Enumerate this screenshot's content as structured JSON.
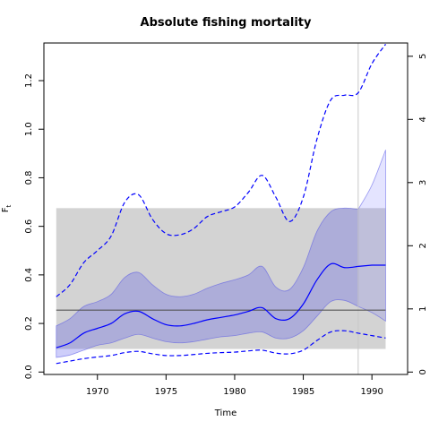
{
  "chart_data": {
    "type": "line",
    "title": "Absolute fishing mortality",
    "xlabel": "Time",
    "ylabel": "F",
    "ylabel_subscript": "t",
    "xlim": [
      1966.1,
      1992.6
    ],
    "ylim": [
      -0.01,
      1.355
    ],
    "ylim_right": [
      -0.038,
      5.21
    ],
    "x_ticks": [
      1970,
      1975,
      1980,
      1985,
      1990
    ],
    "y_ticks": [
      0.0,
      0.2,
      0.4,
      0.6,
      0.8,
      1.0,
      1.2
    ],
    "y_tick_labels": [
      "0.0",
      "0.2",
      "0.4",
      "0.6",
      "0.8",
      "1.0",
      "1.2"
    ],
    "y_right_ticks": [
      0,
      1,
      2,
      3,
      4,
      5
    ],
    "y_right_tick_labels": [
      "0",
      "1",
      "2",
      "3",
      "4",
      "5"
    ],
    "grey_band": {
      "x": [
        1967,
        1991
      ],
      "y": [
        0.095,
        0.675
      ]
    },
    "reference_line": {
      "y": 0.255,
      "x": [
        1967,
        1991
      ]
    },
    "vertical_line": {
      "x": 1989
    },
    "series": [
      {
        "style": "solid",
        "color": "#0000ff",
        "x": [
          1967,
          1968,
          1969,
          1970,
          1971,
          1972,
          1973,
          1974,
          1975,
          1976,
          1977,
          1978,
          1979,
          1980,
          1981,
          1982,
          1983,
          1984,
          1985,
          1986,
          1987,
          1988,
          1989
        ],
        "y": [
          0.1,
          0.12,
          0.16,
          0.18,
          0.2,
          0.24,
          0.25,
          0.22,
          0.195,
          0.19,
          0.2,
          0.215,
          0.225,
          0.235,
          0.25,
          0.265,
          0.22,
          0.22,
          0.28,
          0.38,
          0.445,
          0.43,
          0.435
        ]
      },
      {
        "style": "solid-extension",
        "color": "#0000ff",
        "x": [
          1989,
          1990,
          1991
        ],
        "y": [
          0.435,
          0.44,
          0.44
        ]
      },
      {
        "style": "dashed",
        "color": "#0000ff",
        "x": [
          1967,
          1968,
          1969,
          1970,
          1971,
          1972,
          1973,
          1974,
          1975,
          1976,
          1977,
          1978,
          1979,
          1980,
          1981,
          1982,
          1983,
          1984,
          1985,
          1986,
          1987,
          1988,
          1989,
          1990,
          1991
        ],
        "y": [
          0.31,
          0.36,
          0.45,
          0.5,
          0.56,
          0.7,
          0.73,
          0.63,
          0.57,
          0.565,
          0.59,
          0.64,
          0.66,
          0.68,
          0.74,
          0.81,
          0.72,
          0.62,
          0.72,
          0.96,
          1.12,
          1.14,
          1.15,
          1.27,
          1.35
        ]
      },
      {
        "style": "dashed",
        "color": "#0000ff",
        "x": [
          1967,
          1968,
          1969,
          1970,
          1971,
          1972,
          1973,
          1974,
          1975,
          1976,
          1977,
          1978,
          1979,
          1980,
          1981,
          1982,
          1983,
          1984,
          1985,
          1986,
          1987,
          1988,
          1989,
          1990,
          1991
        ],
        "y": [
          0.035,
          0.045,
          0.055,
          0.062,
          0.068,
          0.08,
          0.085,
          0.075,
          0.068,
          0.068,
          0.072,
          0.077,
          0.08,
          0.082,
          0.087,
          0.09,
          0.078,
          0.075,
          0.09,
          0.13,
          0.165,
          0.17,
          0.16,
          0.15,
          0.14
        ]
      }
    ],
    "band": {
      "x": [
        1967,
        1968,
        1969,
        1970,
        1971,
        1972,
        1973,
        1974,
        1975,
        1976,
        1977,
        1978,
        1979,
        1980,
        1981,
        1982,
        1983,
        1984,
        1985,
        1986,
        1987,
        1988,
        1989
      ],
      "upper": [
        0.19,
        0.22,
        0.27,
        0.29,
        0.32,
        0.39,
        0.41,
        0.36,
        0.32,
        0.31,
        0.32,
        0.345,
        0.365,
        0.38,
        0.4,
        0.435,
        0.35,
        0.34,
        0.43,
        0.58,
        0.66,
        0.675,
        0.67
      ],
      "lower": [
        0.06,
        0.07,
        0.09,
        0.11,
        0.12,
        0.14,
        0.155,
        0.14,
        0.125,
        0.12,
        0.125,
        0.135,
        0.145,
        0.15,
        0.16,
        0.165,
        0.14,
        0.14,
        0.17,
        0.23,
        0.29,
        0.295,
        0.27
      ]
    },
    "band_extension": {
      "x": [
        1989,
        1990,
        1991
      ],
      "upper": [
        0.67,
        0.77,
        0.915
      ],
      "lower": [
        0.27,
        0.245,
        0.21
      ]
    }
  }
}
